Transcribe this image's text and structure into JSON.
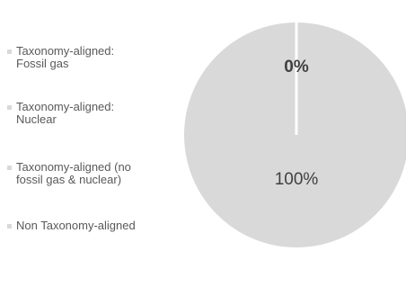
{
  "chart_data": {
    "type": "pie",
    "categories": [
      "Taxonomy-aligned:\nFossil gas",
      "Taxonomy-aligned:\nNuclear",
      "Taxonomy-aligned (no\nfossil gas & nuclear)",
      "Non Taxonomy-aligned"
    ],
    "values": [
      0,
      0,
      0,
      100
    ],
    "value_labels": [
      "0%",
      null,
      null,
      "100%"
    ],
    "colors": [
      "#d9d9d9",
      "#d9d9d9",
      "#d9d9d9",
      "#d9d9d9"
    ],
    "legend": "left"
  }
}
